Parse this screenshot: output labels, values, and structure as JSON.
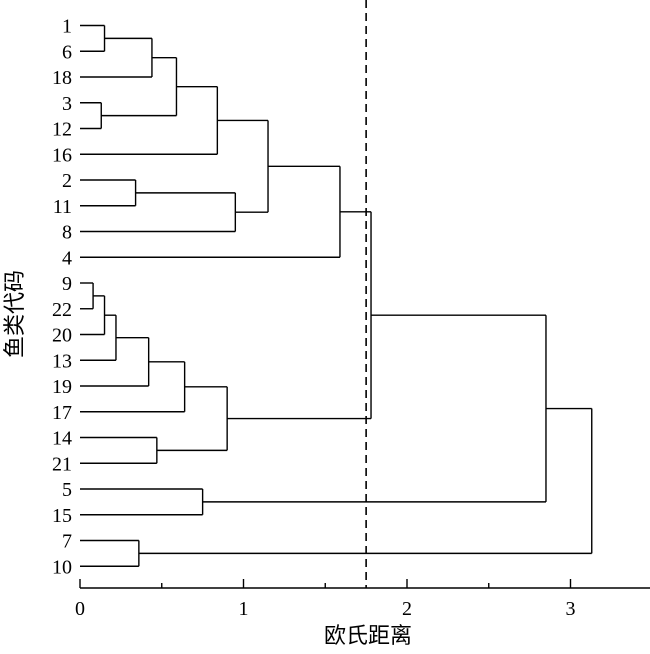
{
  "chart_data": {
    "type": "dendrogram",
    "xlabel": "欧氏距离",
    "ylabel": "鱼类代码",
    "xlim": [
      0,
      3.5
    ],
    "x_ticks": [
      0,
      1,
      2,
      3
    ],
    "x_minor_step": 0.5,
    "cut_threshold": 1.75,
    "leaf_order": [
      "1",
      "6",
      "18",
      "3",
      "12",
      "16",
      "2",
      "11",
      "8",
      "4",
      "9",
      "22",
      "20",
      "13",
      "19",
      "17",
      "14",
      "21",
      "5",
      "15",
      "7",
      "10"
    ],
    "merges": [
      {
        "a": "1",
        "b": "6",
        "h": 0.15
      },
      {
        "a": "1+6",
        "b": "18",
        "h": 0.44
      },
      {
        "a": "3",
        "b": "12",
        "h": 0.13
      },
      {
        "a": "1+6+18",
        "b": "3+12",
        "h": 0.59
      },
      {
        "a": "1-18-3-12",
        "b": "16",
        "h": 0.84
      },
      {
        "a": "2",
        "b": "11",
        "h": 0.34
      },
      {
        "a": "2+11",
        "b": "8",
        "h": 0.95
      },
      {
        "a": "A",
        "b": "2+11+8",
        "h": 1.15
      },
      {
        "a": "A2",
        "b": "4",
        "h": 1.59
      },
      {
        "a": "9",
        "b": "22",
        "h": 0.08
      },
      {
        "a": "9+22",
        "b": "20",
        "h": 0.15
      },
      {
        "a": "9-22-20",
        "b": "13",
        "h": 0.22
      },
      {
        "a": "9-13",
        "b": "19",
        "h": 0.42
      },
      {
        "a": "9-19",
        "b": "17",
        "h": 0.64
      },
      {
        "a": "14",
        "b": "21",
        "h": 0.47
      },
      {
        "a": "B",
        "b": "14+21",
        "h": 0.9
      },
      {
        "a": "upper",
        "b": "lower",
        "h": 1.78
      },
      {
        "a": "5",
        "b": "15",
        "h": 0.75
      },
      {
        "a": "main",
        "b": "5+15",
        "h": 2.85
      },
      {
        "a": "7",
        "b": "10",
        "h": 0.36
      },
      {
        "a": "main2",
        "b": "7+10",
        "h": 3.13
      }
    ]
  }
}
